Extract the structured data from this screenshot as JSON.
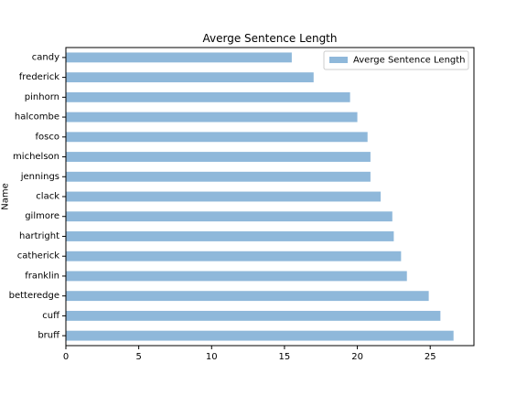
{
  "chart_data": {
    "type": "bar",
    "orientation": "horizontal",
    "title": "Averge Sentence Length",
    "xlabel": "",
    "ylabel": "Name",
    "xlim": [
      0,
      28
    ],
    "xticks": [
      0,
      5,
      10,
      15,
      20,
      25
    ],
    "categories": [
      "bruff",
      "cuff",
      "betteredge",
      "franklin",
      "catherick",
      "hartright",
      "gilmore",
      "clack",
      "jennings",
      "michelson",
      "fosco",
      "halcombe",
      "pinhorn",
      "frederick",
      "candy"
    ],
    "series": [
      {
        "name": "Averge Sentence Length",
        "color": "#8fb8da",
        "values": [
          26.6,
          25.7,
          24.9,
          23.4,
          23.0,
          22.5,
          22.4,
          21.6,
          20.9,
          20.9,
          20.7,
          20.0,
          19.5,
          17.0,
          15.5
        ]
      }
    ],
    "legend": {
      "placement": "top-right",
      "entries": [
        "Averge Sentence Length"
      ]
    },
    "grid": false
  }
}
